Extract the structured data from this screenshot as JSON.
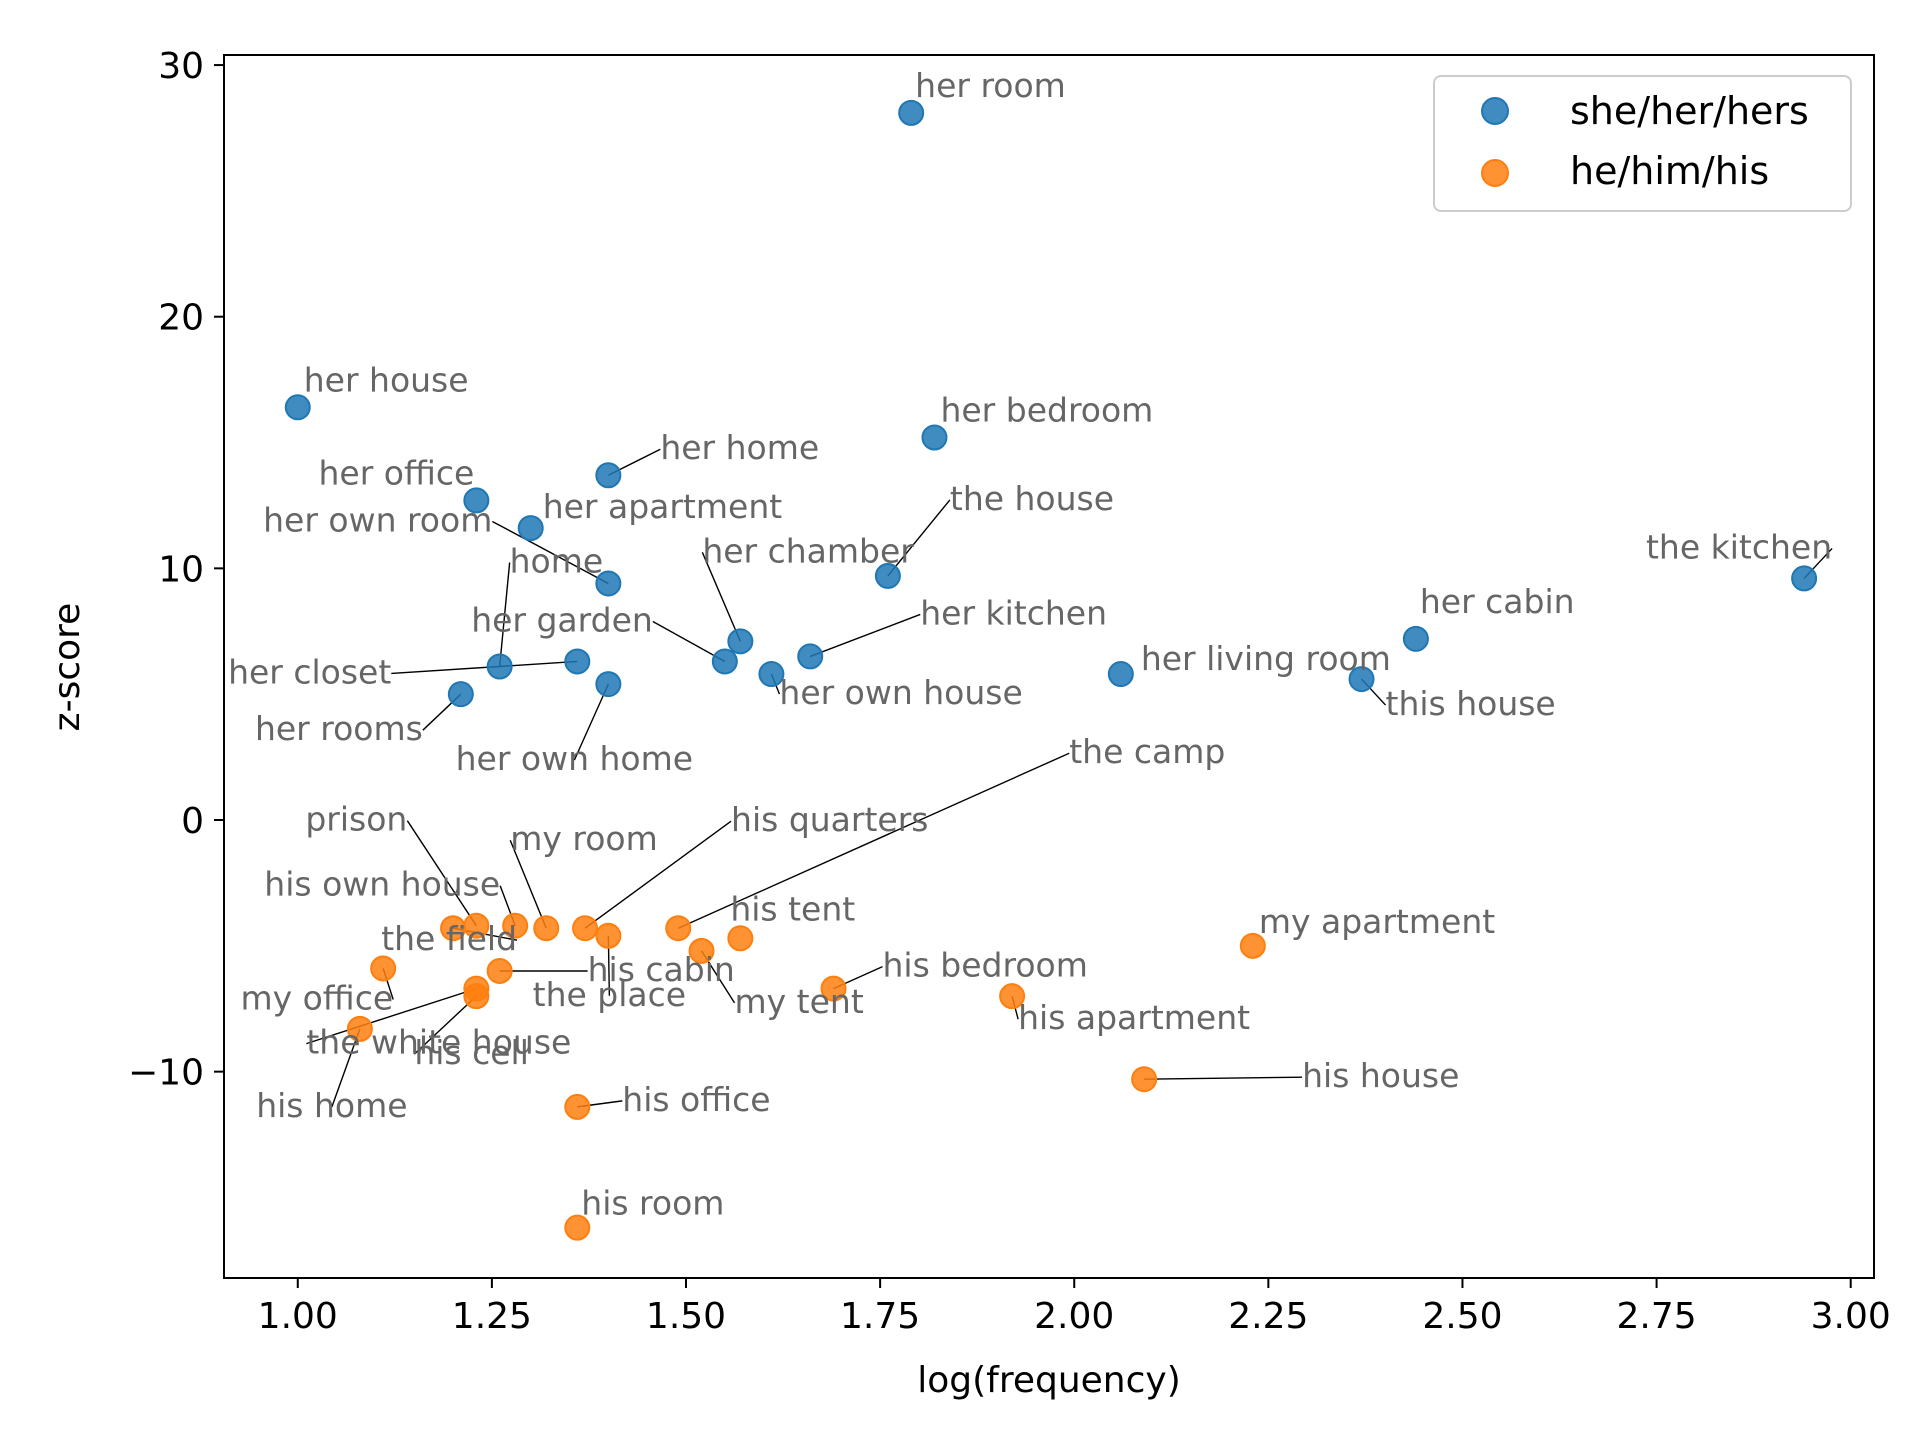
{
  "chart_data": {
    "type": "scatter",
    "xlabel": "log(frequency)",
    "ylabel": "z-score",
    "xlim": [
      0.905,
      3.03
    ],
    "ylim": [
      -18.2,
      30.4
    ],
    "x_ticks": [
      1.0,
      1.25,
      1.5,
      1.75,
      2.0,
      2.25,
      2.5,
      2.75,
      3.0
    ],
    "x_tick_labels": [
      "1.00",
      "1.25",
      "1.50",
      "1.75",
      "2.00",
      "2.25",
      "2.50",
      "2.75",
      "3.00"
    ],
    "y_ticks": [
      -10,
      0,
      10,
      20,
      30
    ],
    "y_tick_labels": [
      "−10",
      "0",
      "10",
      "20",
      "30"
    ],
    "grid": false,
    "legend_position": "top-right",
    "series": [
      {
        "name": "she/her/hers",
        "color": "#1f77b4",
        "points": [
          {
            "x": 1.79,
            "y": 28.1,
            "label": "her room"
          },
          {
            "x": 1.0,
            "y": 16.4,
            "label": "her house"
          },
          {
            "x": 1.82,
            "y": 15.2,
            "label": "her bedroom"
          },
          {
            "x": 1.4,
            "y": 13.7,
            "label": "her home"
          },
          {
            "x": 1.23,
            "y": 12.7,
            "label": "her office"
          },
          {
            "x": 1.3,
            "y": 11.6,
            "label": "her apartment"
          },
          {
            "x": 1.4,
            "y": 9.4,
            "label": "her own room"
          },
          {
            "x": 1.76,
            "y": 9.7,
            "label": "the house"
          },
          {
            "x": 2.94,
            "y": 9.6,
            "label": "the kitchen"
          },
          {
            "x": 1.26,
            "y": 6.1,
            "label": "home"
          },
          {
            "x": 1.36,
            "y": 6.3,
            "label": "her closet"
          },
          {
            "x": 1.57,
            "y": 7.1,
            "label": "her chamber"
          },
          {
            "x": 1.55,
            "y": 6.3,
            "label": "her garden"
          },
          {
            "x": 1.66,
            "y": 6.5,
            "label": "her kitchen"
          },
          {
            "x": 1.61,
            "y": 5.8,
            "label": "her own house"
          },
          {
            "x": 1.21,
            "y": 5.0,
            "label": "her rooms"
          },
          {
            "x": 1.4,
            "y": 5.4,
            "label": "her own home"
          },
          {
            "x": 2.06,
            "y": 5.8,
            "label": "her living room"
          },
          {
            "x": 2.44,
            "y": 7.2,
            "label": "her cabin"
          },
          {
            "x": 2.37,
            "y": 5.6,
            "label": "this house"
          }
        ]
      },
      {
        "name": "he/him/his",
        "color": "#ff7f0e",
        "points": [
          {
            "x": 1.49,
            "y": -4.3,
            "label": "the camp"
          },
          {
            "x": 1.37,
            "y": -4.3,
            "label": "his quarters"
          },
          {
            "x": 1.23,
            "y": -4.2,
            "label": "prison"
          },
          {
            "x": 1.32,
            "y": -4.3,
            "label": "my room"
          },
          {
            "x": 1.28,
            "y": -4.2,
            "label": "his own house"
          },
          {
            "x": 1.2,
            "y": -4.3,
            "label": "the field"
          },
          {
            "x": 1.57,
            "y": -4.7,
            "label": "his tent"
          },
          {
            "x": 1.26,
            "y": -6.0,
            "label": "his cabin"
          },
          {
            "x": 1.4,
            "y": -4.6,
            "label": "the place"
          },
          {
            "x": 1.52,
            "y": -5.2,
            "label": "my tent"
          },
          {
            "x": 1.11,
            "y": -5.9,
            "label": "my office"
          },
          {
            "x": 1.23,
            "y": -6.7,
            "label": "the white house"
          },
          {
            "x": 1.23,
            "y": -7.0,
            "label": "his cell"
          },
          {
            "x": 1.08,
            "y": -8.3,
            "label": "his home"
          },
          {
            "x": 1.69,
            "y": -6.7,
            "label": "his bedroom"
          },
          {
            "x": 1.92,
            "y": -7.0,
            "label": "his apartment"
          },
          {
            "x": 2.23,
            "y": -5.0,
            "label": "my apartment"
          },
          {
            "x": 2.09,
            "y": -10.3,
            "label": "his house"
          },
          {
            "x": 1.36,
            "y": -11.4,
            "label": "his office"
          },
          {
            "x": 1.36,
            "y": -16.2,
            "label": "his room"
          }
        ]
      }
    ]
  }
}
